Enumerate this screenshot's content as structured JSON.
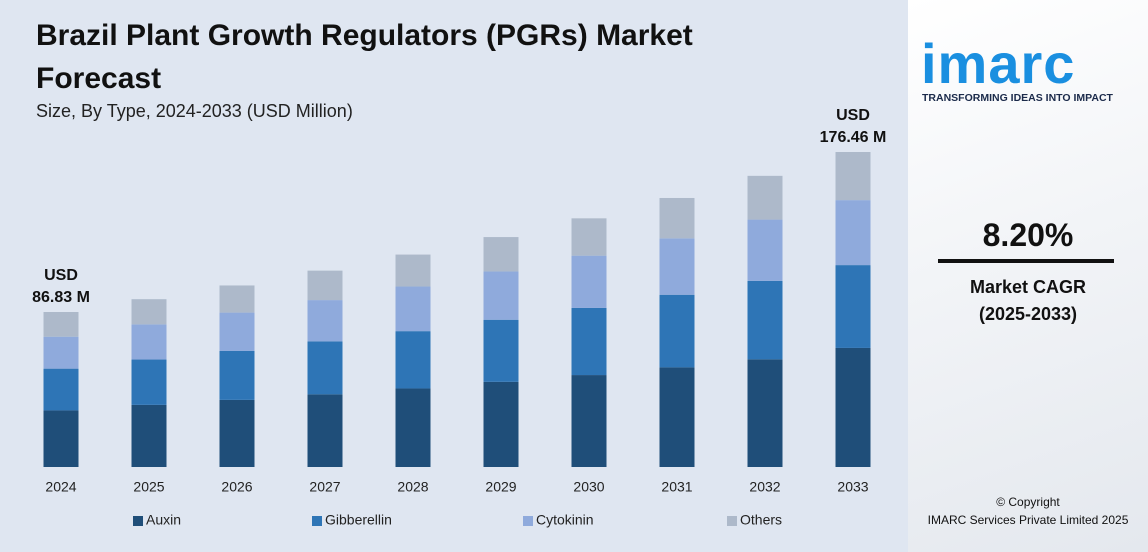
{
  "chart_data": {
    "type": "stacked_bar",
    "title": "Brazil Plant Growth Regulators (PGRs) Market Forecast",
    "subtitle": "Size, By Type, 2024-2033 (USD Million)",
    "categories": [
      "2024",
      "2025",
      "2026",
      "2027",
      "2028",
      "2029",
      "2030",
      "2031",
      "2032",
      "2033"
    ],
    "series": [
      {
        "name": "Auxin",
        "color": "#1f4e79",
        "values": [
          31.7,
          34.8,
          37.6,
          40.7,
          44.0,
          47.7,
          51.5,
          55.8,
          60.3,
          66.7
        ]
      },
      {
        "name": "Gibberellin",
        "color": "#2e75b6",
        "values": [
          23.4,
          25.4,
          27.5,
          29.7,
          32.1,
          34.8,
          37.6,
          40.7,
          44.0,
          46.4
        ]
      },
      {
        "name": "Cytokinin",
        "color": "#8faadc",
        "values": [
          17.9,
          19.7,
          21.4,
          23.1,
          25.0,
          27.0,
          29.3,
          31.6,
          34.3,
          36.4
        ]
      },
      {
        "name": "Others",
        "color": "#adb9ca",
        "values": [
          13.83,
          14.1,
          15.2,
          16.5,
          17.9,
          19.3,
          20.9,
          22.6,
          24.5,
          26.96
        ]
      }
    ],
    "annotations": [
      {
        "category": "2024",
        "text": [
          "USD",
          "86.83 M"
        ]
      },
      {
        "category": "2033",
        "text": [
          "USD",
          "176.46 M"
        ]
      }
    ],
    "legend": "bottom"
  },
  "brand": {
    "logo": "imarc",
    "tagline": "TRANSFORMING IDEAS INTO IMPACT"
  },
  "cagr": {
    "value": "8.20%",
    "label": "Market CAGR",
    "period": "(2025-2033)"
  },
  "footer": {
    "copyright": "© Copyright",
    "company": "IMARC Services Private Limited 2025"
  }
}
